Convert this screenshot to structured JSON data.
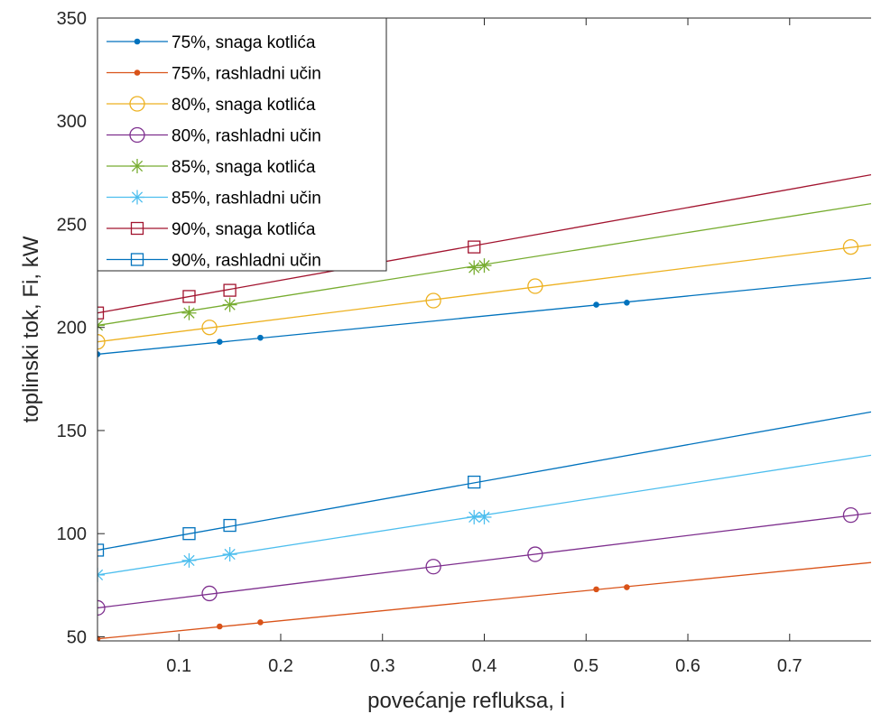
{
  "chart_data": {
    "type": "line",
    "xlabel": "povećanje refluksa, i",
    "ylabel": "toplinski tok, Fi, kW",
    "xlim": [
      0.02,
      0.78
    ],
    "ylim": [
      48,
      350
    ],
    "x_ticks": [
      0.1,
      0.2,
      0.3,
      0.4,
      0.5,
      0.6,
      0.7
    ],
    "x_tick_labels": [
      "0.1",
      "0.2",
      "0.3",
      "0.4",
      "0.5",
      "0.6",
      "0.7"
    ],
    "y_ticks": [
      50,
      100,
      150,
      200,
      250,
      300,
      350
    ],
    "y_tick_labels": [
      "50",
      "100",
      "150",
      "200",
      "250",
      "300",
      "350"
    ],
    "grid": false,
    "legend_position": "top-left",
    "series": [
      {
        "name": "75%, snaga kotlića",
        "color": "#0072BD",
        "marker": "dot",
        "x": [
          0.02,
          0.78
        ],
        "y": [
          187,
          224
        ],
        "marker_x": [
          0.02,
          0.14,
          0.18,
          0.51,
          0.54
        ],
        "marker_y": [
          187,
          193,
          195,
          211,
          212
        ]
      },
      {
        "name": "75%, rashladni učin",
        "color": "#D95319",
        "marker": "dot",
        "x": [
          0.02,
          0.78
        ],
        "y": [
          49,
          86
        ],
        "marker_x": [
          0.02,
          0.14,
          0.18,
          0.51,
          0.54
        ],
        "marker_y": [
          49,
          55,
          57,
          73,
          74
        ]
      },
      {
        "name": "80%, snaga kotlića",
        "color": "#EDB120",
        "marker": "circle",
        "x": [
          0.02,
          0.78
        ],
        "y": [
          193,
          240
        ],
        "marker_x": [
          0.02,
          0.13,
          0.35,
          0.45,
          0.76
        ],
        "marker_y": [
          193,
          200,
          213,
          220,
          239
        ]
      },
      {
        "name": " 80%, rashladni učin",
        "color": "#7E2F8E",
        "marker": "circle",
        "x": [
          0.02,
          0.78
        ],
        "y": [
          64,
          110
        ],
        "marker_x": [
          0.02,
          0.13,
          0.35,
          0.45,
          0.76
        ],
        "marker_y": [
          64,
          71,
          84,
          90,
          109
        ]
      },
      {
        "name": "85%, snaga kotlića",
        "color": "#77AC30",
        "marker": "asterisk",
        "x": [
          0.02,
          0.78
        ],
        "y": [
          201,
          260
        ],
        "marker_x": [
          0.02,
          0.11,
          0.15,
          0.39,
          0.4
        ],
        "marker_y": [
          201,
          207,
          211,
          229,
          230
        ]
      },
      {
        "name": "85%, rashladni učin",
        "color": "#4DBEEE",
        "marker": "asterisk",
        "x": [
          0.02,
          0.78
        ],
        "y": [
          80,
          138
        ],
        "marker_x": [
          0.02,
          0.11,
          0.15,
          0.39,
          0.4
        ],
        "marker_y": [
          80,
          87,
          90,
          108,
          108
        ]
      },
      {
        "name": "90%, snaga kotlića",
        "color": "#A2142F",
        "marker": "square",
        "x": [
          0.02,
          0.78
        ],
        "y": [
          207,
          274
        ],
        "marker_x": [
          0.02,
          0.11,
          0.15,
          0.39
        ],
        "marker_y": [
          207,
          215,
          218,
          239
        ]
      },
      {
        "name": "90%, rashladni učin",
        "color": "#0072BD",
        "marker": "square",
        "x": [
          0.02,
          0.78
        ],
        "y": [
          92,
          159
        ],
        "marker_x": [
          0.02,
          0.11,
          0.15,
          0.39
        ],
        "marker_y": [
          92,
          100,
          104,
          125
        ]
      }
    ]
  }
}
